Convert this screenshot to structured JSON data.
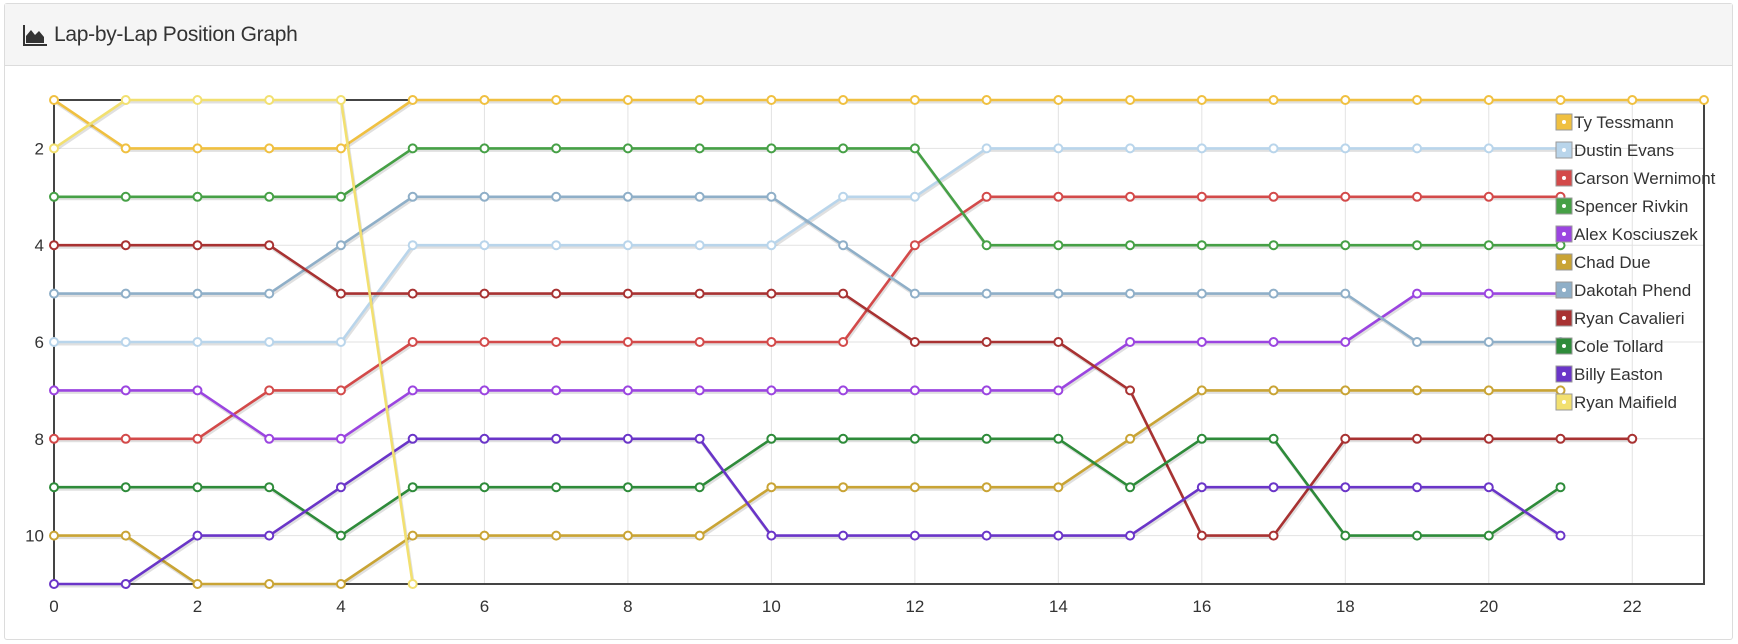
{
  "panel": {
    "title": "Lap-by-Lap Position Graph",
    "icon": "area-chart-icon"
  },
  "chart_data": {
    "type": "line",
    "title": "",
    "xlabel": "",
    "ylabel": "",
    "xlim": [
      0,
      23
    ],
    "ylim": [
      1,
      11
    ],
    "y_inverted": true,
    "x_ticks": [
      0,
      2,
      4,
      6,
      8,
      10,
      12,
      14,
      16,
      18,
      20,
      22
    ],
    "y_ticks": [
      2,
      4,
      6,
      8,
      10
    ],
    "grid": true,
    "legend_position": "top-right",
    "series": [
      {
        "name": "Ty Tessmann",
        "color": "#F0C040",
        "values": [
          1,
          2,
          2,
          2,
          2,
          1,
          1,
          1,
          1,
          1,
          1,
          1,
          1,
          1,
          1,
          1,
          1,
          1,
          1,
          1,
          1,
          1,
          1,
          1
        ]
      },
      {
        "name": "Dustin Evans",
        "color": "#B9D5EB",
        "values": [
          6,
          6,
          6,
          6,
          6,
          4,
          4,
          4,
          4,
          4,
          4,
          3,
          3,
          2,
          2,
          2,
          2,
          2,
          2,
          2,
          2,
          2
        ]
      },
      {
        "name": "Carson Wernimont",
        "color": "#D34A4A",
        "values": [
          8,
          8,
          8,
          7,
          7,
          6,
          6,
          6,
          6,
          6,
          6,
          6,
          4,
          3,
          3,
          3,
          3,
          3,
          3,
          3,
          3,
          3
        ]
      },
      {
        "name": "Spencer Rivkin",
        "color": "#46A046",
        "values": [
          3,
          3,
          3,
          3,
          3,
          2,
          2,
          2,
          2,
          2,
          2,
          2,
          2,
          4,
          4,
          4,
          4,
          4,
          4,
          4,
          4,
          4
        ]
      },
      {
        "name": "Alex Kosciuszek",
        "color": "#9B45E0",
        "values": [
          7,
          7,
          7,
          8,
          8,
          7,
          7,
          7,
          7,
          7,
          7,
          7,
          7,
          7,
          7,
          6,
          6,
          6,
          6,
          5,
          5,
          5
        ]
      },
      {
        "name": "Chad Due",
        "color": "#C9A435",
        "values": [
          10,
          10,
          11,
          11,
          11,
          10,
          10,
          10,
          10,
          10,
          9,
          9,
          9,
          9,
          9,
          8,
          7,
          7,
          7,
          7,
          7,
          7
        ]
      },
      {
        "name": "Dakotah Phend",
        "color": "#8FAFC8",
        "values": [
          5,
          5,
          5,
          5,
          4,
          3,
          3,
          3,
          3,
          3,
          3,
          4,
          5,
          5,
          5,
          5,
          5,
          5,
          5,
          6,
          6,
          6
        ]
      },
      {
        "name": "Ryan Cavalieri",
        "color": "#A83232",
        "values": [
          4,
          4,
          4,
          4,
          5,
          5,
          5,
          5,
          5,
          5,
          5,
          5,
          6,
          6,
          6,
          7,
          10,
          10,
          8,
          8,
          8,
          8,
          8
        ]
      },
      {
        "name": "Cole Tollard",
        "color": "#2E8B3A",
        "values": [
          9,
          9,
          9,
          9,
          10,
          9,
          9,
          9,
          9,
          9,
          8,
          8,
          8,
          8,
          8,
          9,
          8,
          8,
          10,
          10,
          10,
          9
        ]
      },
      {
        "name": "Billy Easton",
        "color": "#6A35C8",
        "values": [
          11,
          11,
          10,
          10,
          9,
          8,
          8,
          8,
          8,
          8,
          10,
          10,
          10,
          10,
          10,
          10,
          9,
          9,
          9,
          9,
          9,
          10
        ]
      },
      {
        "name": "Ryan Maifield",
        "color": "#F2E070",
        "values": [
          2,
          1,
          1,
          1,
          1,
          11
        ]
      }
    ]
  }
}
